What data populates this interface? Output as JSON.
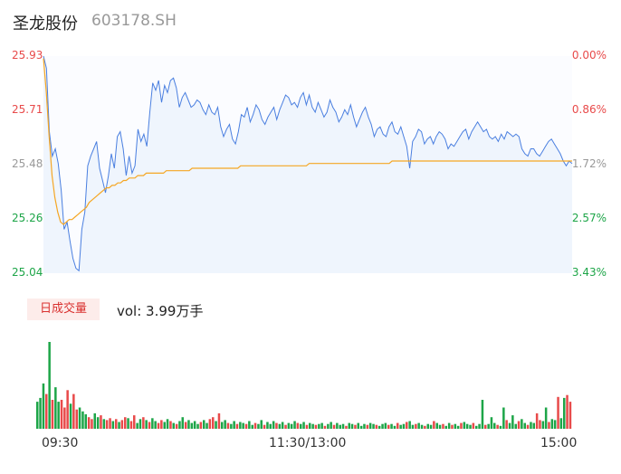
{
  "header": {
    "name": "圣龙股份",
    "code": "603178.SH"
  },
  "chart_data": {
    "type": "line",
    "series": [
      {
        "name": "price"
      },
      {
        "name": "avg"
      }
    ],
    "ylim": [
      25.04,
      25.93
    ],
    "price_ticks": [
      "25.93",
      "25.71",
      "25.48",
      "25.26",
      "25.04"
    ],
    "pct_ticks": [
      "0.00%",
      "-0.86%",
      "-1.72%",
      "-2.57%",
      "-3.43%"
    ],
    "x_ticks": [
      "09:30",
      "11:30/13:00",
      "15:00"
    ],
    "price_points": [
      25.93,
      25.88,
      25.62,
      25.52,
      25.55,
      25.49,
      25.38,
      25.22,
      25.25,
      25.17,
      25.1,
      25.06,
      25.05,
      25.22,
      25.29,
      25.48,
      25.52,
      25.55,
      25.58,
      25.47,
      25.42,
      25.37,
      25.44,
      25.53,
      25.47,
      25.6,
      25.62,
      25.55,
      25.44,
      25.52,
      25.45,
      25.48,
      25.63,
      25.58,
      25.61,
      25.56,
      25.7,
      25.82,
      25.79,
      25.83,
      25.74,
      25.81,
      25.78,
      25.83,
      25.84,
      25.8,
      25.72,
      25.76,
      25.78,
      25.75,
      25.72,
      25.73,
      25.75,
      25.74,
      25.71,
      25.69,
      25.73,
      25.7,
      25.69,
      25.72,
      25.64,
      25.6,
      25.63,
      25.65,
      25.59,
      25.57,
      25.62,
      25.69,
      25.68,
      25.72,
      25.66,
      25.69,
      25.73,
      25.71,
      25.67,
      25.65,
      25.68,
      25.7,
      25.72,
      25.67,
      25.71,
      25.74,
      25.77,
      25.76,
      25.73,
      25.74,
      25.72,
      25.76,
      25.78,
      25.73,
      25.77,
      25.72,
      25.7,
      25.74,
      25.71,
      25.68,
      25.7,
      25.75,
      25.72,
      25.7,
      25.66,
      25.68,
      25.71,
      25.69,
      25.73,
      25.68,
      25.64,
      25.67,
      25.7,
      25.72,
      25.68,
      25.65,
      25.6,
      25.63,
      25.64,
      25.61,
      25.6,
      25.64,
      25.66,
      25.62,
      25.61,
      25.64,
      25.6,
      25.56,
      25.47,
      25.58,
      25.6,
      25.63,
      25.62,
      25.57,
      25.59,
      25.6,
      25.57,
      25.6,
      25.62,
      25.61,
      25.59,
      25.55,
      25.57,
      25.56,
      25.58,
      25.6,
      25.62,
      25.63,
      25.59,
      25.62,
      25.64,
      25.66,
      25.64,
      25.62,
      25.63,
      25.6,
      25.59,
      25.6,
      25.58,
      25.61,
      25.59,
      25.62,
      25.61,
      25.6,
      25.61,
      25.6,
      25.55,
      25.53,
      25.52,
      25.55,
      25.55,
      25.53,
      25.52,
      25.54,
      25.56,
      25.58,
      25.59,
      25.57,
      25.55,
      25.53,
      25.5,
      25.48,
      25.5,
      25.49
    ],
    "avg_points": [
      25.92,
      25.78,
      25.6,
      25.44,
      25.35,
      25.29,
      25.25,
      25.24,
      25.25,
      25.26,
      25.26,
      25.27,
      25.28,
      25.29,
      25.3,
      25.31,
      25.33,
      25.34,
      25.35,
      25.36,
      25.37,
      25.38,
      25.39,
      25.39,
      25.4,
      25.4,
      25.41,
      25.41,
      25.42,
      25.42,
      25.43,
      25.43,
      25.43,
      25.44,
      25.44,
      25.44,
      25.45,
      25.45,
      25.45,
      25.45,
      25.45,
      25.45,
      25.45,
      25.46,
      25.46,
      25.46,
      25.46,
      25.46,
      25.46,
      25.46,
      25.46,
      25.46,
      25.47,
      25.47,
      25.47,
      25.47,
      25.47,
      25.47,
      25.47,
      25.47,
      25.47,
      25.47,
      25.47,
      25.47,
      25.47,
      25.47,
      25.47,
      25.47,
      25.47,
      25.48,
      25.48,
      25.48,
      25.48,
      25.48,
      25.48,
      25.48,
      25.48,
      25.48,
      25.48,
      25.48,
      25.48,
      25.48,
      25.48,
      25.48,
      25.48,
      25.48,
      25.48,
      25.48,
      25.48,
      25.48,
      25.48,
      25.48,
      25.48,
      25.49,
      25.49,
      25.49,
      25.49,
      25.49,
      25.49,
      25.49,
      25.49,
      25.49,
      25.49,
      25.49,
      25.49,
      25.49,
      25.49,
      25.49,
      25.49,
      25.49,
      25.49,
      25.49,
      25.49,
      25.49,
      25.49,
      25.49,
      25.49,
      25.49,
      25.49,
      25.49,
      25.49,
      25.49,
      25.5,
      25.5,
      25.5,
      25.5,
      25.5,
      25.5,
      25.5,
      25.5,
      25.5,
      25.5,
      25.5,
      25.5,
      25.5,
      25.5,
      25.5,
      25.5,
      25.5,
      25.5,
      25.5,
      25.5,
      25.5,
      25.5,
      25.5,
      25.5,
      25.5,
      25.5,
      25.5,
      25.5,
      25.5,
      25.5,
      25.5,
      25.5,
      25.5,
      25.5,
      25.5,
      25.5,
      25.5,
      25.5,
      25.5,
      25.5,
      25.5,
      25.5,
      25.5,
      25.5,
      25.5,
      25.5,
      25.5,
      25.5,
      25.5,
      25.5,
      25.5,
      25.5,
      25.5,
      25.5,
      25.5,
      25.5,
      25.5,
      25.5,
      25.5,
      25.5,
      25.5,
      25.5,
      25.5,
      25.5
    ],
    "volume_label": "日成交量",
    "volume_text": "vol: 3.99万手",
    "volume_bars": [
      28,
      32,
      47,
      36,
      90,
      30,
      43,
      28,
      30,
      22,
      40,
      26,
      36,
      20,
      22,
      18,
      15,
      12,
      10,
      16,
      12,
      14,
      10,
      9,
      11,
      8,
      10,
      7,
      9,
      12,
      11,
      8,
      14,
      6,
      10,
      12,
      9,
      7,
      11,
      8,
      6,
      9,
      7,
      10,
      8,
      6,
      5,
      8,
      12,
      7,
      9,
      6,
      8,
      5,
      7,
      9,
      6,
      10,
      12,
      8,
      16,
      7,
      9,
      6,
      5,
      8,
      5,
      7,
      6,
      5,
      8,
      4,
      6,
      5,
      9,
      4,
      7,
      5,
      8,
      6,
      5,
      7,
      4,
      6,
      5,
      8,
      6,
      5,
      7,
      4,
      6,
      5,
      4,
      5,
      6,
      3,
      5,
      7,
      4,
      6,
      4,
      5,
      3,
      6,
      5,
      4,
      6,
      3,
      5,
      4,
      6,
      5,
      4,
      3,
      5,
      6,
      4,
      5,
      3,
      6,
      4,
      5,
      7,
      8,
      4,
      5,
      6,
      4,
      3,
      5,
      4,
      8,
      6,
      4,
      5,
      3,
      6,
      4,
      5,
      3,
      6,
      7,
      5,
      4,
      6,
      3,
      5,
      30,
      4,
      5,
      12,
      6,
      4,
      3,
      22,
      9,
      6,
      14,
      5,
      8,
      10,
      6,
      4,
      7,
      6,
      16,
      9,
      8,
      22,
      7,
      10,
      9,
      33,
      11,
      32,
      35,
      28
    ],
    "volume_colors": [
      "g",
      "g",
      "g",
      "r",
      "g",
      "r",
      "g",
      "g",
      "r",
      "r",
      "r",
      "g",
      "r",
      "r",
      "g",
      "g",
      "g",
      "r",
      "r",
      "g",
      "g",
      "r",
      "g",
      "r",
      "r",
      "g",
      "r",
      "g",
      "r",
      "r",
      "g",
      "r",
      "r",
      "g",
      "g",
      "r",
      "g",
      "r",
      "g",
      "g",
      "r",
      "r",
      "g",
      "g",
      "r",
      "g",
      "r",
      "g",
      "g",
      "r",
      "g",
      "g",
      "g",
      "g",
      "r",
      "g",
      "g",
      "r",
      "r",
      "g",
      "r",
      "g",
      "g",
      "r",
      "g",
      "g",
      "r",
      "g",
      "g",
      "r",
      "g",
      "g",
      "r",
      "g",
      "g",
      "r",
      "g",
      "g",
      "g",
      "r",
      "g",
      "g",
      "r",
      "g",
      "g",
      "g",
      "r",
      "g",
      "g",
      "r",
      "g",
      "g",
      "r",
      "g",
      "g",
      "r",
      "g",
      "g",
      "r",
      "g",
      "g",
      "g",
      "r",
      "g",
      "g",
      "r",
      "g",
      "g",
      "g",
      "r",
      "g",
      "g",
      "r",
      "g",
      "g",
      "g",
      "r",
      "g",
      "g",
      "r",
      "g",
      "g",
      "r",
      "g",
      "g",
      "r",
      "g",
      "g",
      "r",
      "g",
      "g",
      "r",
      "g",
      "g",
      "r",
      "g",
      "g",
      "r",
      "g",
      "g",
      "r",
      "g",
      "g",
      "g",
      "r",
      "g",
      "g",
      "g",
      "r",
      "g",
      "g",
      "g",
      "r",
      "g",
      "g",
      "r",
      "g",
      "g",
      "g",
      "r",
      "g",
      "g",
      "r",
      "g",
      "g",
      "r",
      "r",
      "g",
      "g",
      "r",
      "g",
      "g",
      "r",
      "g",
      "g",
      "r",
      "r"
    ],
    "colors": {
      "price_line": "#4a7fe0",
      "avg_line": "#f5a623",
      "up": "#e84a4a",
      "down": "#1da548",
      "fill": "#e8f0fc"
    }
  }
}
